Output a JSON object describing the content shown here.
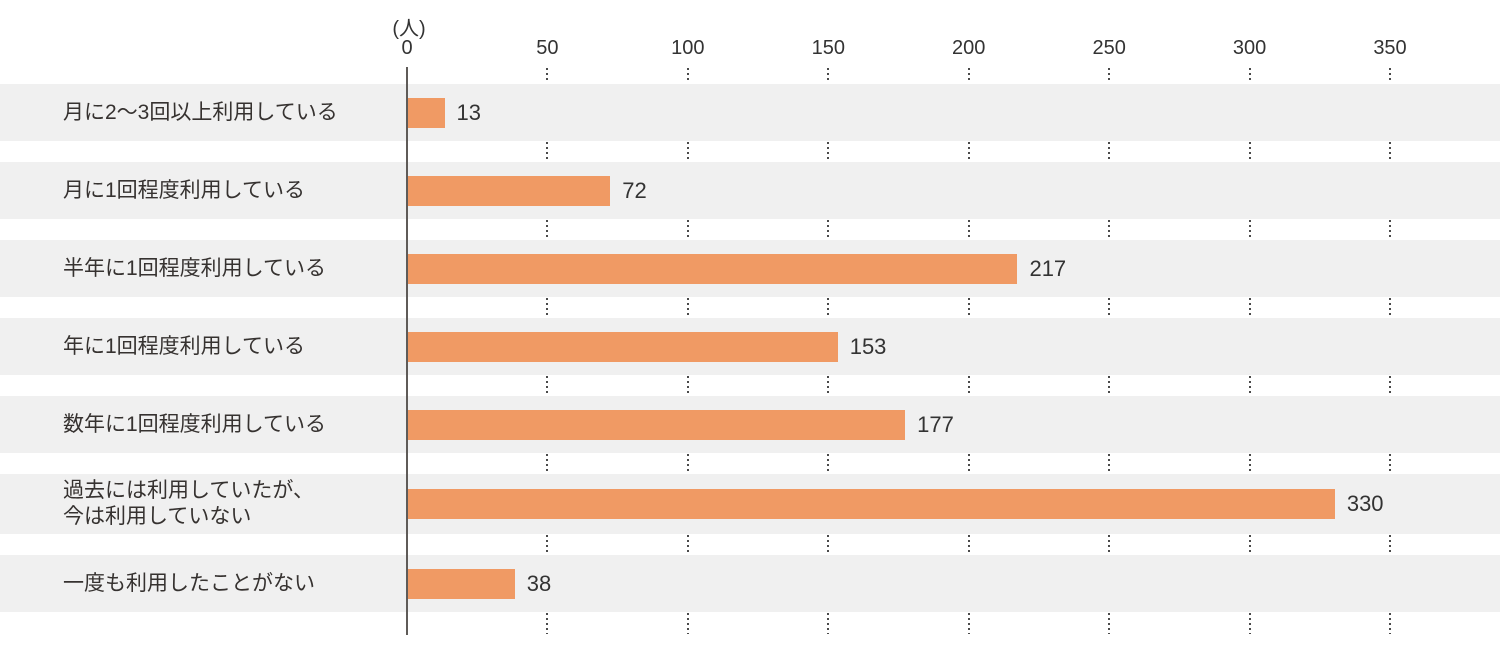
{
  "chart_data": {
    "type": "bar",
    "orientation": "horizontal",
    "title": "",
    "unit_label": "(人)",
    "xlabel": "",
    "ylabel": "",
    "xlim": [
      0,
      350
    ],
    "x_ticks": [
      0,
      50,
      100,
      150,
      200,
      250,
      300,
      350
    ],
    "grid": "dotted-vertical-in-gaps",
    "legend": "none",
    "categories": [
      "月に2〜3回以上利用している",
      "月に1回程度利用している",
      "半年に1回程度利用している",
      "年に1回程度利用している",
      "数年に1回程度利用している",
      "過去には利用していたが、\n今は利用していない",
      "一度も利用したことがない"
    ],
    "values": [
      13,
      72,
      217,
      153,
      177,
      330,
      38
    ],
    "colors": {
      "bar": "#f09a64",
      "row_background": "#f0f0f0",
      "axis_line": "#5f5b58",
      "gridline": "#4a4a4a",
      "text": "#333333"
    }
  }
}
